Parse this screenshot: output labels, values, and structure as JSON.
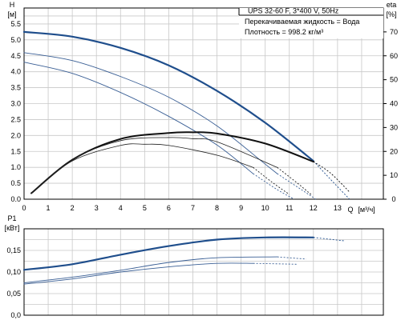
{
  "header": {
    "title": "UPS 32-60 F, 3*400 V, 50Hz",
    "liquid": "Перекачиваемая жидкость = Вода",
    "density": "Плотность = 998.2 кг/м³"
  },
  "chart_data": [
    {
      "type": "line",
      "title": "UPS 32-60 F, 3*400 V, 50Hz",
      "ylabel": "H",
      "yunit": "[м]",
      "y2label": "eta",
      "y2unit": "[%]",
      "xlabel": "Q",
      "xunit": "[м³/ч]",
      "xlim": [
        0,
        14.9
      ],
      "ylim": [
        0,
        6.0
      ],
      "y2lim": [
        0,
        80
      ],
      "xticks": [
        0,
        1,
        2,
        3,
        4,
        5,
        6,
        7,
        8,
        9,
        10,
        11,
        12,
        13
      ],
      "yticks": [
        0.0,
        0.5,
        1.0,
        1.5,
        2.0,
        2.5,
        3.0,
        3.5,
        4.0,
        4.5,
        5.0,
        5.5
      ],
      "y2ticks": [
        0,
        10,
        20,
        30,
        40,
        50,
        60,
        70
      ],
      "grid": true,
      "series": [
        {
          "key": "h1",
          "axis": "H",
          "style": "thick-blue",
          "x": [
            0,
            2,
            4,
            6,
            8,
            10,
            12
          ],
          "y": [
            5.25,
            5.1,
            4.75,
            4.2,
            3.4,
            2.4,
            1.2
          ],
          "x_ext": [
            12,
            12.8,
            13.5
          ],
          "y_ext": [
            1.2,
            0.55,
            0.0
          ]
        },
        {
          "key": "h2",
          "axis": "H",
          "style": "thin-blue",
          "x": [
            0,
            2,
            4,
            6,
            8,
            10,
            10.5
          ],
          "y": [
            4.6,
            4.35,
            3.85,
            3.2,
            2.3,
            1.1,
            0.8
          ],
          "x_ext": [
            10.5,
            11.5,
            12.1
          ],
          "y_ext": [
            0.8,
            0.3,
            0.0
          ]
        },
        {
          "key": "h3",
          "axis": "H",
          "style": "thin-blue",
          "x": [
            0,
            2,
            4,
            6,
            8,
            9.5
          ],
          "y": [
            4.3,
            3.95,
            3.35,
            2.6,
            1.7,
            0.8
          ],
          "x_ext": [
            9.5,
            10.5,
            11.2
          ],
          "y_ext": [
            0.8,
            0.3,
            0.0
          ]
        },
        {
          "key": "eta1",
          "axis": "eta",
          "style": "thick-black",
          "x": [
            0.3,
            2,
            4,
            6,
            7,
            8,
            10,
            12
          ],
          "y": [
            2.5,
            16.5,
            25.2,
            27.7,
            28,
            27.5,
            23.3,
            15.7
          ],
          "x_ext": [
            12,
            12.7,
            13.5
          ],
          "y_ext": [
            15.7,
            11,
            3
          ]
        },
        {
          "key": "eta2",
          "axis": "eta",
          "style": "thin-black",
          "x": [
            0.3,
            2,
            4,
            6,
            7,
            8,
            10.5
          ],
          "y": [
            2.5,
            16.5,
            24.5,
            25.8,
            25.3,
            24,
            13.3
          ],
          "x_ext": [
            10.5,
            11.3,
            11.9
          ],
          "y_ext": [
            13.3,
            7,
            2
          ]
        },
        {
          "key": "eta3",
          "axis": "eta",
          "style": "thin-black",
          "x": [
            0.3,
            2,
            4,
            5,
            6,
            8,
            9.5
          ],
          "y": [
            2.5,
            16,
            22.5,
            23,
            22.5,
            18.4,
            13.3
          ],
          "x_ext": [
            9.5,
            10.3,
            11
          ],
          "y_ext": [
            13.3,
            7,
            2
          ]
        }
      ]
    },
    {
      "type": "line",
      "ylabel": "P1",
      "yunit": "[кВт]",
      "xlim": [
        0,
        14.9
      ],
      "ylim": [
        0,
        0.2
      ],
      "yticks": [
        0.0,
        0.05,
        0.1,
        0.15
      ],
      "yticklabels": [
        "0,0",
        "0,05",
        "0,10",
        "0,15"
      ],
      "grid": true,
      "series": [
        {
          "key": "p1",
          "style": "thick-blue",
          "x": [
            0,
            2,
            4,
            6,
            8,
            10,
            12
          ],
          "y": [
            0.105,
            0.118,
            0.14,
            0.16,
            0.175,
            0.18,
            0.18
          ],
          "x_ext": [
            12,
            13.3
          ],
          "y_ext": [
            0.18,
            0.172
          ]
        },
        {
          "key": "p2",
          "style": "thin-blue",
          "x": [
            0,
            2,
            4,
            6,
            8,
            10.5
          ],
          "y": [
            0.075,
            0.088,
            0.104,
            0.122,
            0.133,
            0.135
          ],
          "x_ext": [
            10.5,
            11.7
          ],
          "y_ext": [
            0.135,
            0.13
          ]
        },
        {
          "key": "p3",
          "style": "thin-blue",
          "x": [
            0,
            2,
            4,
            6,
            8,
            9.5
          ],
          "y": [
            0.072,
            0.084,
            0.1,
            0.112,
            0.12,
            0.12
          ],
          "x_ext": [
            9.5,
            11.3
          ],
          "y_ext": [
            0.12,
            0.118
          ]
        }
      ]
    }
  ]
}
